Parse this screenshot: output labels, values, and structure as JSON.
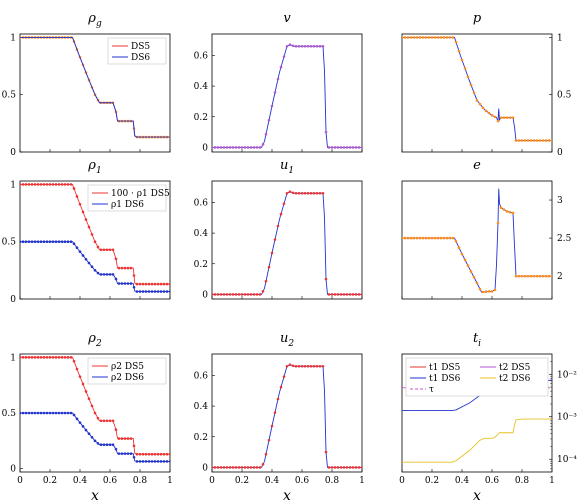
{
  "colors": {
    "ds5": "#ee3333",
    "ds6": "#2233cc",
    "orange": "#ff8c1a",
    "violet": "#b05ad0",
    "yellow": "#e8c020",
    "tau": "#cc55cc"
  },
  "x_label": "x",
  "chart_data": [
    {
      "id": "rho_g",
      "type": "line",
      "title": "ρg",
      "title_main": "ρ",
      "title_sub": "g",
      "xlim": [
        0,
        1
      ],
      "ylim": [
        0,
        1.03
      ],
      "xticks": [],
      "yticks": [
        0,
        0.5,
        1
      ],
      "ytick_labels": [
        "0",
        "0.5",
        "1"
      ],
      "yaxis_side": "left",
      "legend": [
        {
          "label": "DS5",
          "color": "#ee3333"
        },
        {
          "label": "DS6",
          "color": "#2233cc"
        }
      ],
      "series": [
        {
          "name": "DS5",
          "color": "#ee3333",
          "marker": "orange",
          "x": [
            0,
            0.35,
            0.39,
            0.45,
            0.5,
            0.53,
            0.58,
            0.6,
            0.62,
            0.64,
            0.65,
            0.68,
            0.73,
            0.755,
            0.765,
            0.78,
            1
          ],
          "y": [
            1,
            1,
            0.86,
            0.66,
            0.5,
            0.43,
            0.43,
            0.43,
            0.43,
            0.35,
            0.27,
            0.27,
            0.27,
            0.27,
            0.14,
            0.13,
            0.13
          ]
        },
        {
          "name": "DS6",
          "color": "#2233cc",
          "x": [
            0,
            0.35,
            0.39,
            0.45,
            0.5,
            0.53,
            0.58,
            0.6,
            0.62,
            0.64,
            0.65,
            0.68,
            0.73,
            0.755,
            0.765,
            0.78,
            1
          ],
          "y": [
            1,
            1,
            0.86,
            0.66,
            0.5,
            0.43,
            0.43,
            0.43,
            0.43,
            0.35,
            0.27,
            0.27,
            0.27,
            0.27,
            0.14,
            0.13,
            0.13
          ]
        }
      ]
    },
    {
      "id": "v",
      "type": "line",
      "title": "v",
      "title_main": "v",
      "title_sub": "",
      "xlim": [
        0,
        1
      ],
      "ylim": [
        -0.03,
        0.74
      ],
      "xticks": [],
      "yticks": [
        0,
        0.2,
        0.4,
        0.6
      ],
      "ytick_labels": [
        "0",
        "0.2",
        "0.4",
        "0.6"
      ],
      "yaxis_side": "left",
      "legend": [],
      "series": [
        {
          "name": "",
          "color": "#2233cc",
          "marker": "violet",
          "x": [
            0,
            0.33,
            0.35,
            0.4,
            0.45,
            0.5,
            0.52,
            0.55,
            0.6,
            0.65,
            0.7,
            0.74,
            0.75,
            0.76,
            0.77,
            1
          ],
          "y": [
            0,
            0,
            0.04,
            0.27,
            0.49,
            0.66,
            0.67,
            0.66,
            0.66,
            0.66,
            0.66,
            0.66,
            0.5,
            0.1,
            0,
            0
          ]
        }
      ]
    },
    {
      "id": "p",
      "type": "line",
      "title": "p",
      "title_main": "p",
      "title_sub": "",
      "xlim": [
        0,
        1
      ],
      "ylim": [
        0,
        1.03
      ],
      "xticks": [],
      "yticks": [
        0,
        0.5,
        1
      ],
      "ytick_labels": [
        "0",
        "0.5",
        "1"
      ],
      "yaxis_side": "right",
      "legend": [],
      "series": [
        {
          "name": "",
          "color": "#2233cc",
          "marker": "orange",
          "x": [
            0,
            0.35,
            0.39,
            0.45,
            0.5,
            0.55,
            0.6,
            0.63,
            0.64,
            0.645,
            0.65,
            0.66,
            0.7,
            0.74,
            0.75,
            0.76,
            0.77,
            1
          ],
          "y": [
            1,
            1,
            0.84,
            0.62,
            0.45,
            0.37,
            0.32,
            0.3,
            0.27,
            0.38,
            0.28,
            0.3,
            0.3,
            0.3,
            0.22,
            0.1,
            0.1,
            0.1
          ]
        }
      ]
    },
    {
      "id": "rho_1",
      "type": "line",
      "title": "ρ1",
      "title_main": "ρ",
      "title_sub": "1",
      "xlim": [
        0,
        1
      ],
      "ylim": [
        0,
        1.03
      ],
      "xticks": [],
      "yticks": [
        0,
        0.5,
        1
      ],
      "ytick_labels": [
        "0",
        "0.5",
        "1"
      ],
      "yaxis_side": "left",
      "legend": [
        {
          "label": "100 · ρ1 DS5",
          "color": "#ee3333"
        },
        {
          "label": "ρ1 DS6",
          "color": "#2233cc"
        }
      ],
      "series": [
        {
          "name": "100 · ρ1 DS5",
          "color": "#ee3333",
          "marker": "red",
          "x": [
            0,
            0.35,
            0.39,
            0.45,
            0.5,
            0.53,
            0.58,
            0.6,
            0.62,
            0.64,
            0.65,
            0.68,
            0.73,
            0.755,
            0.765,
            0.78,
            1
          ],
          "y": [
            1,
            1,
            0.86,
            0.66,
            0.5,
            0.43,
            0.43,
            0.43,
            0.43,
            0.35,
            0.27,
            0.27,
            0.27,
            0.27,
            0.14,
            0.13,
            0.13
          ]
        },
        {
          "name": "ρ1 DS6",
          "color": "#2233cc",
          "marker": "blue",
          "x": [
            0,
            0.35,
            0.39,
            0.45,
            0.5,
            0.53,
            0.58,
            0.6,
            0.62,
            0.64,
            0.65,
            0.68,
            0.73,
            0.755,
            0.765,
            0.78,
            1
          ],
          "y": [
            0.5,
            0.5,
            0.43,
            0.33,
            0.25,
            0.215,
            0.215,
            0.215,
            0.215,
            0.175,
            0.135,
            0.135,
            0.135,
            0.135,
            0.07,
            0.065,
            0.065
          ]
        }
      ]
    },
    {
      "id": "u_1",
      "type": "line",
      "title": "u1",
      "title_main": "u",
      "title_sub": "1",
      "xlim": [
        0,
        1
      ],
      "ylim": [
        -0.03,
        0.74
      ],
      "xticks": [],
      "yticks": [
        0,
        0.2,
        0.4,
        0.6
      ],
      "ytick_labels": [
        "0",
        "0.2",
        "0.4",
        "0.6"
      ],
      "yaxis_side": "left",
      "legend": [],
      "series": [
        {
          "name": "",
          "color": "#2233cc",
          "marker": "red",
          "x": [
            0,
            0.33,
            0.35,
            0.4,
            0.45,
            0.5,
            0.52,
            0.55,
            0.6,
            0.65,
            0.7,
            0.74,
            0.75,
            0.76,
            0.77,
            1
          ],
          "y": [
            0,
            0,
            0.04,
            0.27,
            0.49,
            0.66,
            0.67,
            0.66,
            0.66,
            0.66,
            0.66,
            0.66,
            0.5,
            0.1,
            0,
            0
          ]
        }
      ]
    },
    {
      "id": "e",
      "type": "line",
      "title": "e",
      "title_main": "e",
      "title_sub": "",
      "xlim": [
        0,
        1
      ],
      "ylim": [
        1.7,
        3.25
      ],
      "xticks": [],
      "yticks": [
        2,
        2.5,
        3
      ],
      "ytick_labels": [
        "2",
        "2.5",
        "3"
      ],
      "yaxis_side": "right",
      "legend": [],
      "series": [
        {
          "name": "",
          "color": "#2233cc",
          "marker": "orange",
          "x": [
            0,
            0.35,
            0.4,
            0.45,
            0.5,
            0.53,
            0.58,
            0.6,
            0.62,
            0.63,
            0.64,
            0.645,
            0.65,
            0.66,
            0.7,
            0.74,
            0.75,
            0.76,
            0.77,
            1
          ],
          "y": [
            2.5,
            2.5,
            2.29,
            2.1,
            1.91,
            1.79,
            1.8,
            1.8,
            1.82,
            2.15,
            2.7,
            3.15,
            2.95,
            2.9,
            2.85,
            2.83,
            2.4,
            2.0,
            2.0,
            2.0
          ]
        }
      ]
    },
    {
      "id": "rho_2",
      "type": "line",
      "title": "ρ2",
      "title_main": "ρ",
      "title_sub": "2",
      "xlim": [
        0,
        1
      ],
      "ylim": [
        -0.03,
        1.03
      ],
      "xticks": [
        0,
        0.2,
        0.4,
        0.6,
        0.8,
        1
      ],
      "xtick_labels": [
        "0",
        "0.2",
        "0.4",
        "0.6",
        "0.8",
        "1"
      ],
      "yticks": [
        0,
        0.5,
        1
      ],
      "ytick_labels": [
        "0",
        "0.5",
        "1"
      ],
      "yaxis_side": "left",
      "legend": [
        {
          "label": "ρ2 DS5",
          "color": "#ee3333"
        },
        {
          "label": "ρ2 DS6",
          "color": "#2233cc"
        }
      ],
      "series": [
        {
          "name": "ρ2 DS5",
          "color": "#ee3333",
          "marker": "red",
          "x": [
            0,
            0.35,
            0.39,
            0.45,
            0.5,
            0.53,
            0.58,
            0.6,
            0.62,
            0.64,
            0.65,
            0.68,
            0.73,
            0.755,
            0.765,
            0.78,
            1
          ],
          "y": [
            1,
            1,
            0.86,
            0.66,
            0.5,
            0.43,
            0.43,
            0.43,
            0.43,
            0.35,
            0.27,
            0.27,
            0.27,
            0.27,
            0.14,
            0.13,
            0.13
          ]
        },
        {
          "name": "ρ2 DS6",
          "color": "#2233cc",
          "marker": "blue",
          "x": [
            0,
            0.35,
            0.39,
            0.45,
            0.5,
            0.53,
            0.58,
            0.6,
            0.62,
            0.64,
            0.65,
            0.68,
            0.73,
            0.755,
            0.765,
            0.78,
            1
          ],
          "y": [
            0.5,
            0.5,
            0.43,
            0.33,
            0.25,
            0.215,
            0.215,
            0.215,
            0.215,
            0.175,
            0.135,
            0.135,
            0.135,
            0.135,
            0.07,
            0.065,
            0.065
          ]
        }
      ]
    },
    {
      "id": "u_2",
      "type": "line",
      "title": "u2",
      "title_main": "u",
      "title_sub": "2",
      "xlim": [
        0,
        1
      ],
      "ylim": [
        -0.03,
        0.74
      ],
      "xticks": [
        0,
        0.2,
        0.4,
        0.6,
        0.8,
        1
      ],
      "xtick_labels": [
        "0",
        "0.2",
        "0.4",
        "0.6",
        "0.8",
        "1"
      ],
      "yticks": [
        0,
        0.2,
        0.4,
        0.6
      ],
      "ytick_labels": [
        "0",
        "0.2",
        "0.4",
        "0.6"
      ],
      "yaxis_side": "left",
      "legend": [],
      "series": [
        {
          "name": "",
          "color": "#2233cc",
          "marker": "red",
          "x": [
            0,
            0.33,
            0.35,
            0.4,
            0.45,
            0.5,
            0.52,
            0.55,
            0.6,
            0.65,
            0.7,
            0.74,
            0.75,
            0.76,
            0.77,
            1
          ],
          "y": [
            0,
            0,
            0.04,
            0.27,
            0.49,
            0.66,
            0.67,
            0.66,
            0.66,
            0.66,
            0.66,
            0.66,
            0.5,
            0.1,
            0,
            0
          ]
        }
      ]
    },
    {
      "id": "t_i",
      "type": "line",
      "title": "ti",
      "title_main": "t",
      "title_sub": "i",
      "xlim": [
        0,
        1
      ],
      "ylim": [
        5e-05,
        0.03
      ],
      "ylog": true,
      "xticks": [
        0,
        0.2,
        0.4,
        0.6,
        0.8,
        1
      ],
      "xtick_labels": [
        "0",
        "0.2",
        "0.4",
        "0.6",
        "0.8",
        "1"
      ],
      "yticks": [
        0.01,
        0.001,
        0.0001
      ],
      "ytick_labels": [
        "10⁻²",
        "10⁻³",
        "10⁻⁴"
      ],
      "yaxis_side": "right",
      "legend": [
        {
          "label": "t1 DS5",
          "color": "#ee3333"
        },
        {
          "label": "t2 DS5",
          "color": "#b05ad0"
        },
        {
          "label": "t1 DS6",
          "color": "#2233cc"
        },
        {
          "label": "t2 DS6",
          "color": "#e8c020"
        },
        {
          "label": "τ",
          "color": "#cc55cc",
          "dashed": true
        }
      ],
      "series": [
        {
          "name": "t1 DS6",
          "color": "#2233cc",
          "x": [
            0,
            0.33,
            0.36,
            0.45,
            0.52,
            0.55,
            0.6,
            0.62,
            0.65,
            0.7,
            0.74,
            0.75,
            0.76,
            0.8,
            1
          ],
          "y": [
            0.0014,
            0.0014,
            0.00145,
            0.0021,
            0.0032,
            0.0035,
            0.0035,
            0.0036,
            0.0043,
            0.0043,
            0.0043,
            0.006,
            0.0072,
            0.0072,
            0.0072
          ]
        },
        {
          "name": "t2 DS6",
          "color": "#e8c020",
          "x": [
            0,
            0.33,
            0.36,
            0.45,
            0.52,
            0.55,
            0.6,
            0.62,
            0.65,
            0.7,
            0.74,
            0.75,
            0.76,
            0.8,
            1
          ],
          "y": [
            8.5e-05,
            8.5e-05,
            9.2e-05,
            0.00016,
            0.00028,
            0.00031,
            0.00031,
            0.00033,
            0.00042,
            0.00042,
            0.00042,
            0.00065,
            0.00085,
            0.00088,
            0.00088
          ]
        },
        {
          "name": "τ",
          "color": "#cc55cc",
          "dashed": true,
          "x": [
            0,
            1
          ],
          "y": [
            0.0048,
            0.0048
          ]
        }
      ]
    }
  ]
}
